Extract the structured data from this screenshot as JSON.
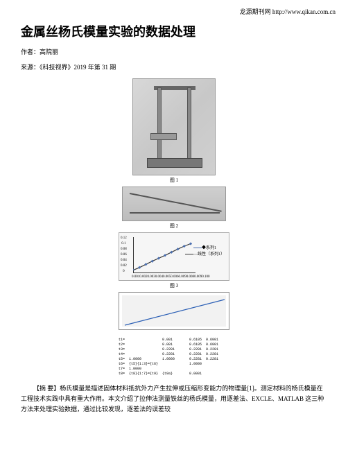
{
  "header": {
    "site_text": "龙源期刊网 http://www.qikan.com.cn"
  },
  "title": "金属丝杨氏模量实验的数据处理",
  "author_line": "作者：高院丽",
  "source_line": "来源：《科技视界》2019 年第 31 期",
  "figures": {
    "fig1_caption": "图 1",
    "fig2_caption": "图 2",
    "fig3_caption": "图 3",
    "fig3": {
      "type": "line",
      "y_ticks": [
        "0.12",
        "0.1",
        "0.08",
        "0.06",
        "0.04",
        "0.02",
        "0"
      ],
      "x_ticks": "0.0010.0020.0030.0040.0050.0060.0090.0080.0090.100",
      "legend_series": "系列1",
      "legend_fit": "线性（系列1）",
      "series_color": "#4a6fb0",
      "fit_color": "#333333",
      "points": [
        {
          "x": 0,
          "y": 0.001
        },
        {
          "x": 10,
          "y": 0.012
        },
        {
          "x": 20,
          "y": 0.025
        },
        {
          "x": 30,
          "y": 0.038
        },
        {
          "x": 40,
          "y": 0.05
        },
        {
          "x": 50,
          "y": 0.062
        },
        {
          "x": 60,
          "y": 0.075
        },
        {
          "x": 70,
          "y": 0.088
        },
        {
          "x": 80,
          "y": 0.1
        },
        {
          "x": 90,
          "y": 0.11
        }
      ],
      "ylim": [
        0,
        0.12
      ]
    },
    "fig4": {
      "type": "line",
      "line_color": "#2b5fb5",
      "background_color": "#f2f2f2",
      "points": [
        {
          "x": 0,
          "y": 0
        },
        {
          "x": 1,
          "y": 0.95
        }
      ]
    },
    "fig5_table": {
      "rows": [
        [
          "t1=",
          "",
          "0.001",
          "",
          "0.6105  0.6001"
        ],
        [
          "t2=",
          "",
          "0.001",
          "",
          "0.6105  0.6001"
        ],
        [
          "t3=",
          "",
          "0.2281",
          "",
          "0.2281  0.2281"
        ],
        [
          "t4=",
          "",
          "0.2281",
          "",
          "0.2281  0.2281"
        ],
        [
          "t5=",
          "1.0000",
          "1.0000",
          "",
          "0.2281  0.2281"
        ],
        [
          "t6=",
          "{t5}{1:3}={t6}",
          "",
          "",
          "1.0000"
        ],
        [
          "t7=",
          "1.0000",
          "",
          "",
          ""
        ],
        [
          "t8=",
          "{t8}{1:7}={t9}",
          "{t9a}",
          "",
          "0.0001"
        ]
      ]
    }
  },
  "abstract": "【摘 要】杨氏模量是描述固体材料抵抗外力产生拉伸或压缩形变能力的物理量[1]。测定材料的杨氏模量在工程技术实践中具有重大作用。本文介绍了拉伸法测量铁丝的杨氏模量，用逐差法、EXCLE、MATLAB 这三种方法来处理实验数据，通过比较发现，逐差法的误差较"
}
